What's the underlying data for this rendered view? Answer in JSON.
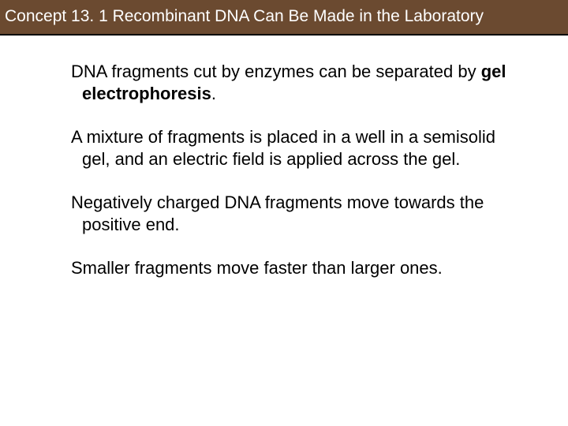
{
  "header": {
    "title": "Concept 13. 1 Recombinant DNA Can Be Made in the Laboratory"
  },
  "paragraphs": {
    "p1_a": "DNA fragments cut by enzymes can be separated by ",
    "p1_b": "gel electrophoresis",
    "p1_c": ".",
    "p2": "A mixture of fragments is placed in a well in a semisolid gel, and an electric field is applied across the gel.",
    "p3": "Negatively charged DNA fragments move towards the positive end.",
    "p4": "Smaller fragments move faster than larger ones."
  },
  "colors": {
    "header_bg": "#6b4a30",
    "header_text": "#ffffff",
    "body_bg": "#ffffff",
    "body_text": "#000000"
  },
  "typography": {
    "header_fontsize": 21,
    "body_fontsize": 22,
    "font_family": "Arial"
  }
}
